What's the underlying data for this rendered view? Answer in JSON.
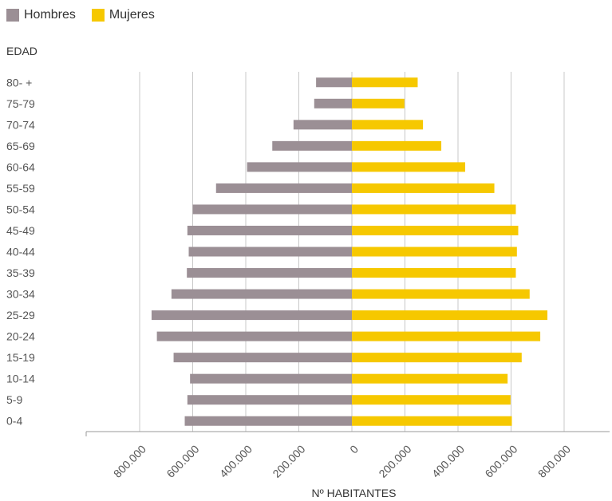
{
  "chart_data": {
    "type": "bar",
    "orientation": "horizontal-butterfly",
    "ylabel": "EDAD",
    "xlabel": "Nº HABITANTES",
    "categories": [
      "80- +",
      "75-79",
      "70-74",
      "65-69",
      "60-64",
      "55-59",
      "50-54",
      "45-49",
      "40-44",
      "35-39",
      "30-34",
      "25-29",
      "20-24",
      "15-19",
      "10-14",
      "5-9",
      "0-4"
    ],
    "series": [
      {
        "name": "Hombres",
        "color": "#9b8f95",
        "values": [
          135000,
          142000,
          220000,
          300000,
          395000,
          512000,
          600000,
          620000,
          615000,
          622000,
          680000,
          755000,
          735000,
          672000,
          610000,
          620000,
          630000
        ]
      },
      {
        "name": "Mujeres",
        "color": "#f6c800",
        "values": [
          248000,
          198000,
          268000,
          337000,
          427000,
          537000,
          618000,
          627000,
          622000,
          618000,
          670000,
          737000,
          710000,
          640000,
          587000,
          598000,
          603000
        ]
      }
    ],
    "xticks": [
      "800.000",
      "600.000",
      "400.000",
      "200.000",
      "0",
      "200.000",
      "400.000",
      "600.000",
      "800.000"
    ],
    "xlim": [
      -1000000,
      1000000
    ],
    "grid": true,
    "legend_position": "top-left"
  }
}
